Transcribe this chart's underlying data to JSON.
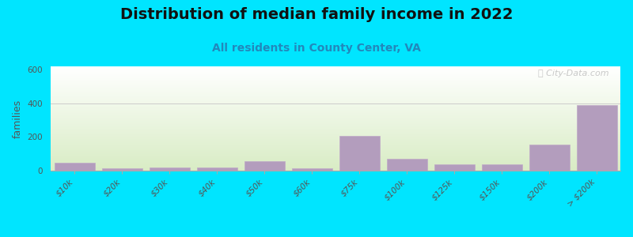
{
  "title": "Distribution of median family income in 2022",
  "subtitle": "All residents in County Center, VA",
  "ylabel": "families",
  "categories": [
    "$10k",
    "$20k",
    "$30k",
    "$40k",
    "$50k",
    "$60k",
    "$75k",
    "$100k",
    "$125k",
    "$150k",
    "$200k",
    "> $200k"
  ],
  "values": [
    45,
    12,
    18,
    18,
    55,
    12,
    207,
    70,
    38,
    38,
    155,
    390
  ],
  "bar_color": "#b39dbd",
  "bar_edge_color": "#c0aac8",
  "background_outer": "#00e5ff",
  "ylim": [
    0,
    620
  ],
  "yticks": [
    0,
    200,
    400,
    600
  ],
  "title_fontsize": 14,
  "subtitle_fontsize": 10,
  "ylabel_fontsize": 9,
  "tick_fontsize": 7.5,
  "watermark": "ⓘ City-Data.com"
}
